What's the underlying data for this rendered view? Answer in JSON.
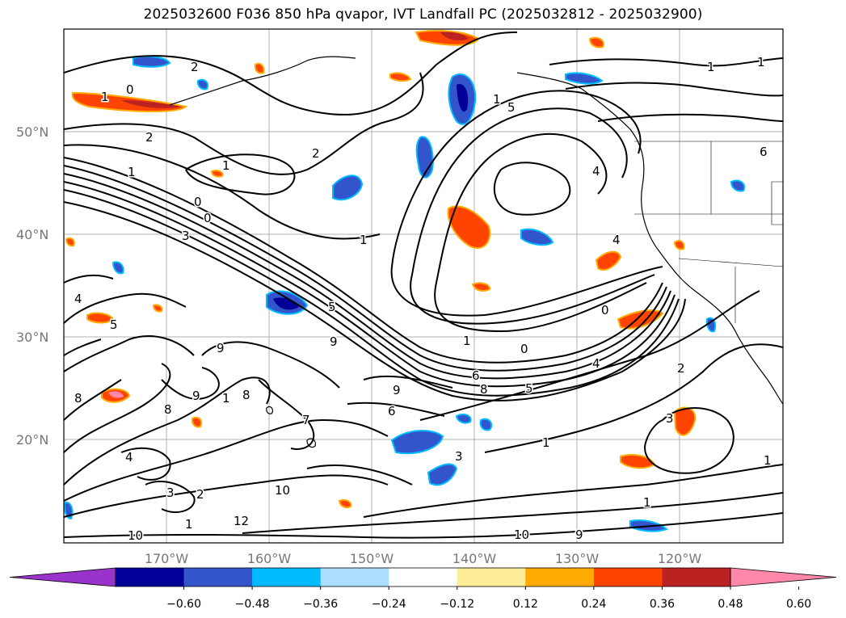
{
  "title": "2025032600 F036 850 hPa qvapor, IVT Landfall PC (2025032812 - 2025032900)",
  "lat_labels": [
    "50°N",
    "40°N",
    "30°N",
    "20°N"
  ],
  "lon_labels": [
    "170°W",
    "160°W",
    "150°W",
    "140°W",
    "130°W",
    "120°W"
  ],
  "colorbar": {
    "colors": [
      "#9933cc",
      "#000099",
      "#3355cc",
      "#00bbff",
      "#aaddff",
      "#ffffff",
      "#ffee99",
      "#ffaa00",
      "#ff4400",
      "#bb2222",
      "#ff88aa"
    ],
    "ticks": [
      "−0.60",
      "−0.48",
      "−0.36",
      "−0.24",
      "−0.12",
      "0.12",
      "0.24",
      "0.36",
      "0.48",
      "0.60"
    ]
  },
  "contour_labels": [
    "2",
    "1",
    "0",
    "1",
    "2",
    "2",
    "1",
    "1",
    "0",
    "0",
    "3",
    "1",
    "4",
    "5",
    "4",
    "5",
    "9",
    "9",
    "1",
    "0",
    "4",
    "6",
    "8",
    "5",
    "9",
    "8",
    "9",
    "8",
    "8",
    "6",
    "4",
    "3",
    "2",
    "1",
    "12",
    "10",
    "1",
    "1",
    "3",
    "1",
    "2",
    "1",
    "4",
    "5",
    "6",
    "1",
    "1",
    "0",
    "3",
    "10",
    "9",
    "10",
    "7"
  ]
}
